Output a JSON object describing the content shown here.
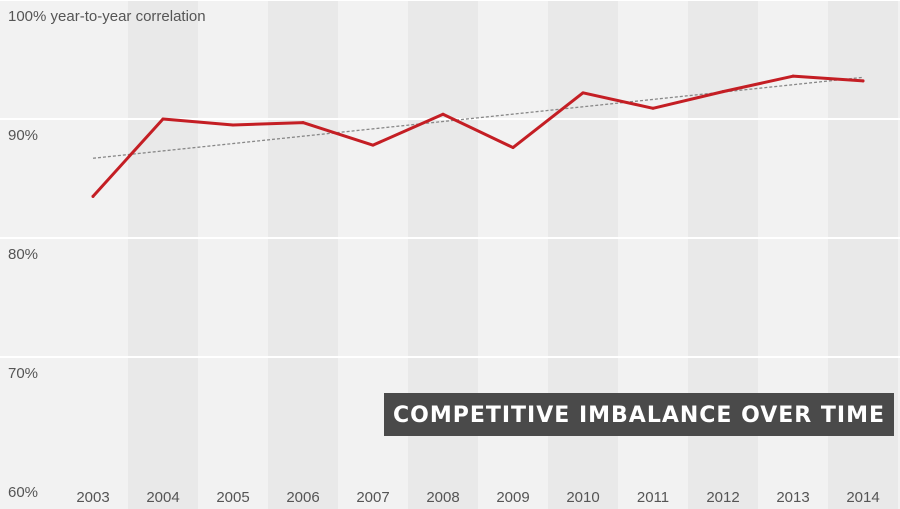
{
  "chart_data": {
    "type": "line",
    "title": "COMPETITIVE IMBALANCE OVER TIME",
    "ylabel": "year-to-year correlation",
    "x": [
      2003,
      2004,
      2005,
      2006,
      2007,
      2008,
      2009,
      2010,
      2011,
      2012,
      2013,
      2014
    ],
    "x_tick_labels": [
      "2003",
      "2004",
      "2005",
      "2006",
      "2007",
      "2008",
      "2009",
      "2010",
      "2011",
      "2012",
      "2013",
      "2014"
    ],
    "ylim": [
      60,
      100
    ],
    "y_ticks": [
      60,
      70,
      80,
      90,
      100
    ],
    "y_tick_labels": [
      "60%",
      "70%",
      "80%",
      "90%",
      "100%"
    ],
    "series": [
      {
        "values": [
          83.5,
          90.0,
          89.5,
          89.7,
          87.8,
          90.4,
          87.6,
          92.2,
          90.9,
          92.3,
          93.6,
          93.2
        ]
      }
    ],
    "trendline": {
      "start": [
        2003,
        86.7
      ],
      "end": [
        2014,
        93.5
      ]
    },
    "grid": true,
    "colors": {
      "line": "#c41e24",
      "trend": "#888888",
      "band_light": "#f2f2f2",
      "band_dark": "#e9e9e9",
      "grid": "#ffffff",
      "title_bg": "#4a4a4a"
    }
  }
}
